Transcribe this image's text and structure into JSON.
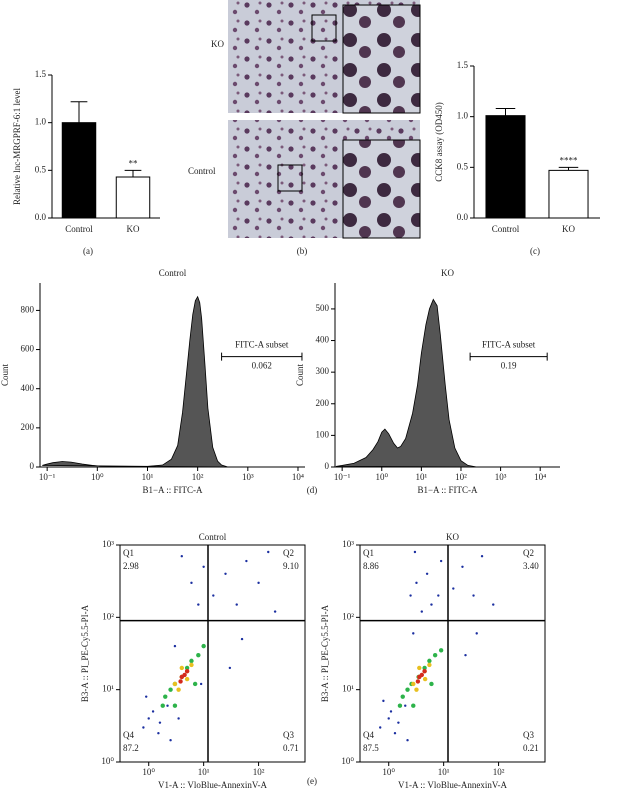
{
  "captions": [
    "(a)",
    "(b)",
    "(c)",
    "(d)",
    "(e)"
  ],
  "micrographs": {
    "labels": [
      "KO",
      "Control"
    ]
  },
  "chart_data": [
    {
      "type": "bar",
      "ylabel": "Relative lnc-MRGPRF-6:1 level",
      "categories": [
        "Control",
        "KO"
      ],
      "values": [
        1.0,
        0.43
      ],
      "errors": [
        0.22,
        0.07
      ],
      "colors": [
        "#000000",
        "#ffffff"
      ],
      "significance": [
        null,
        "**"
      ],
      "ylim": [
        0,
        1.5
      ],
      "yticks": [
        {
          "value": 0,
          "label": "0.0"
        },
        {
          "value": 0.5,
          "label": "0.5"
        },
        {
          "value": 1,
          "label": "1.0"
        },
        1.5
      ]
    },
    {
      "type": "bar",
      "ylabel": "CCK8 assay (OD450)",
      "categories": [
        "Control",
        "KO"
      ],
      "values": [
        1.01,
        0.47
      ],
      "errors": [
        0.07,
        0.03
      ],
      "colors": [
        "#000000",
        "#ffffff"
      ],
      "significance": [
        null,
        "****"
      ],
      "ylim": [
        0,
        1.5
      ],
      "yticks": [
        {
          "value": 0,
          "label": "0.0"
        },
        {
          "value": 0.5,
          "label": "0.5"
        },
        {
          "value": 1,
          "label": "1.0"
        },
        1.5
      ]
    },
    {
      "type": "area",
      "title": "Control",
      "xlabel": "B1−A :: FITC-A",
      "ylabel": "Count",
      "xscale": "log",
      "color": "#555555",
      "x": [
        0.08,
        0.1,
        0.13,
        0.2,
        0.3,
        0.5,
        0.8,
        1.2,
        2,
        5,
        10,
        20,
        30,
        40,
        50,
        60,
        70,
        80,
        90,
        100,
        110,
        120,
        140,
        160,
        200,
        250,
        300,
        400
      ],
      "values": [
        8,
        15,
        22,
        28,
        25,
        15,
        8,
        4,
        2,
        2,
        3,
        10,
        40,
        110,
        280,
        480,
        650,
        780,
        850,
        870,
        840,
        760,
        520,
        300,
        100,
        30,
        10,
        0
      ],
      "xlim": [
        0.072,
        13800
      ],
      "xticks": [
        {
          "value": 0.1,
          "label": "10⁻¹"
        },
        {
          "value": 1,
          "label": "10⁰"
        },
        {
          "value": 10,
          "label": "10¹"
        },
        {
          "value": 100,
          "label": "10²"
        },
        {
          "value": 1000,
          "label": "10³"
        },
        {
          "value": 10000,
          "label": "10⁴"
        }
      ],
      "ylim": [
        0,
        940
      ],
      "yticks": [
        0,
        200,
        400,
        600,
        800
      ],
      "gate": {
        "label": "FITC-A subset",
        "value": 0.062,
        "range": [
          300,
          12000
        ]
      }
    },
    {
      "type": "area",
      "title": "KO",
      "xlabel": "B1−A :: FITC-A",
      "ylabel": "Count",
      "xscale": "log",
      "color": "#555555",
      "x": [
        0.07,
        0.1,
        0.2,
        0.4,
        0.6,
        0.8,
        1,
        1.2,
        1.5,
        2,
        2.5,
        3,
        4,
        6,
        8,
        10,
        13,
        16,
        20,
        25,
        30,
        40,
        50,
        70,
        100,
        150,
        250
      ],
      "values": [
        2,
        5,
        12,
        30,
        55,
        80,
        110,
        120,
        105,
        75,
        60,
        65,
        90,
        170,
        260,
        360,
        450,
        500,
        530,
        510,
        420,
        260,
        150,
        60,
        20,
        5,
        0
      ],
      "xlim": [
        0.066,
        31600
      ],
      "xticks": [
        {
          "value": 0.1,
          "label": "10⁻¹"
        },
        {
          "value": 1,
          "label": "10⁰"
        },
        {
          "value": 10,
          "label": "10¹"
        },
        {
          "value": 100,
          "label": "10²"
        },
        {
          "value": 1000,
          "label": "10³"
        },
        {
          "value": 10000,
          "label": "10⁴"
        }
      ],
      "ylim": [
        0,
        582
      ],
      "yticks": [
        0,
        100,
        200,
        300,
        400,
        500
      ],
      "gate": {
        "label": "FITC-A subset",
        "value": 0.19,
        "range": [
          170,
          15000
        ]
      }
    },
    {
      "type": "scatter",
      "title": "Control",
      "xlabel": "V1-A :: VloBlue-AnnexinV-A",
      "ylabel": "B3-A :: PI_PE-Cy5.5-PI-A",
      "xscale": "log",
      "yscale": "log",
      "xlim": [
        0.3,
        700
      ],
      "xticks": [
        {
          "value": 1,
          "label": "10⁰"
        },
        {
          "value": 10,
          "label": "10¹"
        },
        {
          "value": 100,
          "label": "10²"
        }
      ],
      "ylim": [
        1,
        1000
      ],
      "yticks": [
        {
          "value": 1,
          "label": "10⁰"
        },
        {
          "value": 10,
          "label": "10¹"
        },
        {
          "value": 100,
          "label": "10²"
        },
        {
          "value": 1000,
          "label": "10³"
        }
      ],
      "gate": [
        12,
        90
      ],
      "quadrants": [
        {
          "name": "Q1",
          "value": 2.98
        },
        {
          "name": "Q2",
          "value": 9.1,
          "label": "9.10"
        },
        {
          "name": "Q3",
          "value": 0.71
        },
        {
          "name": "Q4",
          "value": 87.2
        }
      ],
      "series": [
        {
          "color": "#1b2fa0",
          "x": [
            0.8,
            1.2,
            2,
            3,
            15,
            25,
            40,
            60,
            100,
            150,
            8,
            6,
            30,
            2.5,
            1.5,
            0.9,
            50,
            10,
            4,
            200,
            1,
            1.6,
            2.2,
            3.5,
            9
          ],
          "y": [
            3,
            5,
            8,
            40,
            200,
            400,
            150,
            600,
            300,
            800,
            150,
            300,
            20,
            2,
            2.5,
            8,
            50,
            500,
            700,
            120,
            4,
            3.5,
            6,
            4,
            12
          ]
        },
        {
          "color": "#2db34a",
          "x": [
            2,
            3,
            4,
            5,
            6,
            8,
            3,
            10,
            7,
            2.5,
            1.8
          ],
          "y": [
            8,
            12,
            15,
            20,
            25,
            30,
            6,
            40,
            12,
            10,
            6
          ]
        },
        {
          "color": "#e8c020",
          "x": [
            3,
            4,
            5,
            6,
            5,
            4,
            3.5
          ],
          "y": [
            12,
            15,
            18,
            22,
            14,
            20,
            10
          ]
        },
        {
          "color": "#d42a1c",
          "x": [
            4,
            5,
            4.5,
            3.8
          ],
          "y": [
            15,
            18,
            16,
            13
          ]
        }
      ]
    },
    {
      "type": "scatter",
      "title": "KO",
      "xlabel": "V1-A :: VloBlue-AnnexinV-A",
      "ylabel": "B3-A :: PI_PE-Cy5.5-PI-A",
      "xscale": "log",
      "yscale": "log",
      "xlim": [
        0.3,
        700
      ],
      "xticks": [
        {
          "value": 1,
          "label": "10⁰"
        },
        {
          "value": 10,
          "label": "10¹"
        },
        {
          "value": 100,
          "label": "10²"
        }
      ],
      "ylim": [
        1,
        1000
      ],
      "yticks": [
        {
          "value": 1,
          "label": "10⁰"
        },
        {
          "value": 10,
          "label": "10¹"
        },
        {
          "value": 100,
          "label": "10²"
        },
        {
          "value": 1000,
          "label": "10³"
        }
      ],
      "gate": [
        12,
        90
      ],
      "quadrants": [
        {
          "name": "Q1",
          "value": 8.86
        },
        {
          "name": "Q2",
          "value": 3.4,
          "label": "3.40"
        },
        {
          "name": "Q3",
          "value": 0.21
        },
        {
          "name": "Q4",
          "value": 87.5
        }
      ],
      "series": [
        {
          "color": "#1b2fa0",
          "x": [
            0.7,
            1.1,
            1.8,
            2.8,
            15,
            22,
            35,
            50,
            80,
            8,
            5,
            25,
            2.2,
            1.3,
            0.8,
            40,
            9,
            3,
            1,
            1.5,
            2,
            3.2,
            6,
            4,
            2.5
          ],
          "y": [
            3,
            5,
            8,
            60,
            250,
            500,
            200,
            700,
            150,
            200,
            400,
            30,
            2,
            2.5,
            7,
            60,
            600,
            800,
            4,
            3.5,
            6,
            300,
            150,
            120,
            200
          ]
        },
        {
          "color": "#2db34a",
          "x": [
            1.8,
            2.6,
            3.5,
            4.5,
            5.5,
            7,
            2.8,
            9,
            6,
            2.2,
            1.6
          ],
          "y": [
            8,
            12,
            15,
            20,
            25,
            30,
            6,
            35,
            12,
            10,
            6
          ]
        },
        {
          "color": "#e8c020",
          "x": [
            2.8,
            3.6,
            4.5,
            5.5,
            4.6,
            3.6,
            3.2
          ],
          "y": [
            12,
            15,
            18,
            22,
            14,
            20,
            10
          ]
        },
        {
          "color": "#d42a1c",
          "x": [
            3.6,
            4.5,
            4,
            3.4
          ],
          "y": [
            15,
            18,
            16,
            13
          ]
        }
      ]
    }
  ]
}
